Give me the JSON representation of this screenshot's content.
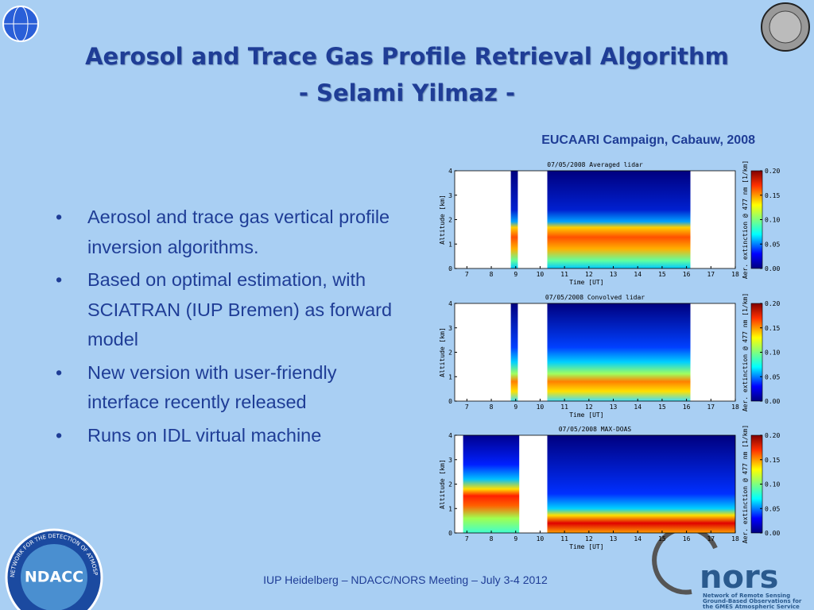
{
  "header": {
    "title_line1": "Aerosol and Trace Gas Profile Retrieval Algorithm",
    "title_line2": "- Selami Yilmaz -",
    "campaign": "EUCAARI Campaign, Cabauw, 2008"
  },
  "bullets": [
    "Aerosol and trace gas vertical profile inversion algorithms.",
    "Based on optimal estimation, with SCIATRAN (IUP Bremen) as forward model",
    "New version with user-friendly interface recently released",
    "Runs on IDL virtual machine"
  ],
  "panels": [
    {
      "title": "07/05/2008 Averaged lidar",
      "x_label": "Time [UT]",
      "y_label": "Altitude [km]",
      "colorbar_label": "Aer. extinction @ 477 nm [1/km]",
      "xlim": [
        6.5,
        18
      ],
      "xticks": [
        7,
        8,
        9,
        10,
        11,
        12,
        13,
        14,
        15,
        16,
        17,
        18
      ],
      "ylim": [
        0,
        4
      ],
      "yticks": [
        0,
        1,
        2,
        3,
        4
      ],
      "clim": [
        0,
        0.2
      ],
      "cticks": [
        {
          "value": 0,
          "label": "0.00"
        },
        {
          "value": 0.05,
          "label": "0.05"
        },
        {
          "value": 0.1,
          "label": "0.10"
        },
        {
          "value": 0.15,
          "label": "0.15"
        },
        {
          "value": 0.2,
          "label": "0.20"
        }
      ]
    },
    {
      "title": "07/05/2008 Convolved lidar",
      "x_label": "Time [UT]",
      "y_label": "Altitude [km]",
      "colorbar_label": "Aer. extinction @ 477 nm [1/km]",
      "xlim": [
        6.5,
        18
      ],
      "xticks": [
        7,
        8,
        9,
        10,
        11,
        12,
        13,
        14,
        15,
        16,
        17,
        18
      ],
      "ylim": [
        0,
        4
      ],
      "yticks": [
        0,
        1,
        2,
        3,
        4
      ],
      "clim": [
        0,
        0.2
      ],
      "cticks": [
        {
          "value": 0,
          "label": "0.00"
        },
        {
          "value": 0.05,
          "label": "0.05"
        },
        {
          "value": 0.1,
          "label": "0.10"
        },
        {
          "value": 0.15,
          "label": "0.15"
        },
        {
          "value": 0.2,
          "label": "0.20"
        }
      ]
    },
    {
      "title": "07/05/2008 MAX-DOAS",
      "x_label": "Time [UT]",
      "y_label": "Altitude [km]",
      "colorbar_label": "Aer. extinction @ 477 nm [1/km]",
      "xlim": [
        6.5,
        18
      ],
      "xticks": [
        7,
        8,
        9,
        10,
        11,
        12,
        13,
        14,
        15,
        16,
        17,
        18
      ],
      "ylim": [
        0,
        4
      ],
      "yticks": [
        0,
        1,
        2,
        3,
        4
      ],
      "clim": [
        0,
        0.2
      ],
      "cticks": [
        {
          "value": 0,
          "label": "0.00"
        },
        {
          "value": 0.05,
          "label": "0.05"
        },
        {
          "value": 0.1,
          "label": "0.10"
        },
        {
          "value": 0.15,
          "label": "0.15"
        },
        {
          "value": 0.2,
          "label": "0.20"
        }
      ]
    }
  ],
  "footer": {
    "text": "IUP Heidelberg – NDACC/NORS Meeting – July 3-4 2012"
  },
  "logos": {
    "ndacc": "NDACC",
    "ndacc_ring": "NETWORK FOR THE DETECTION OF ATMOSPHERIC COMPOSITION CHANGE",
    "nors": "nors",
    "nors_line1": "Network of Remote Sensing",
    "nors_line2": "Ground-Based Observations for",
    "nors_line3": "the GMES Atmospheric Service"
  }
}
